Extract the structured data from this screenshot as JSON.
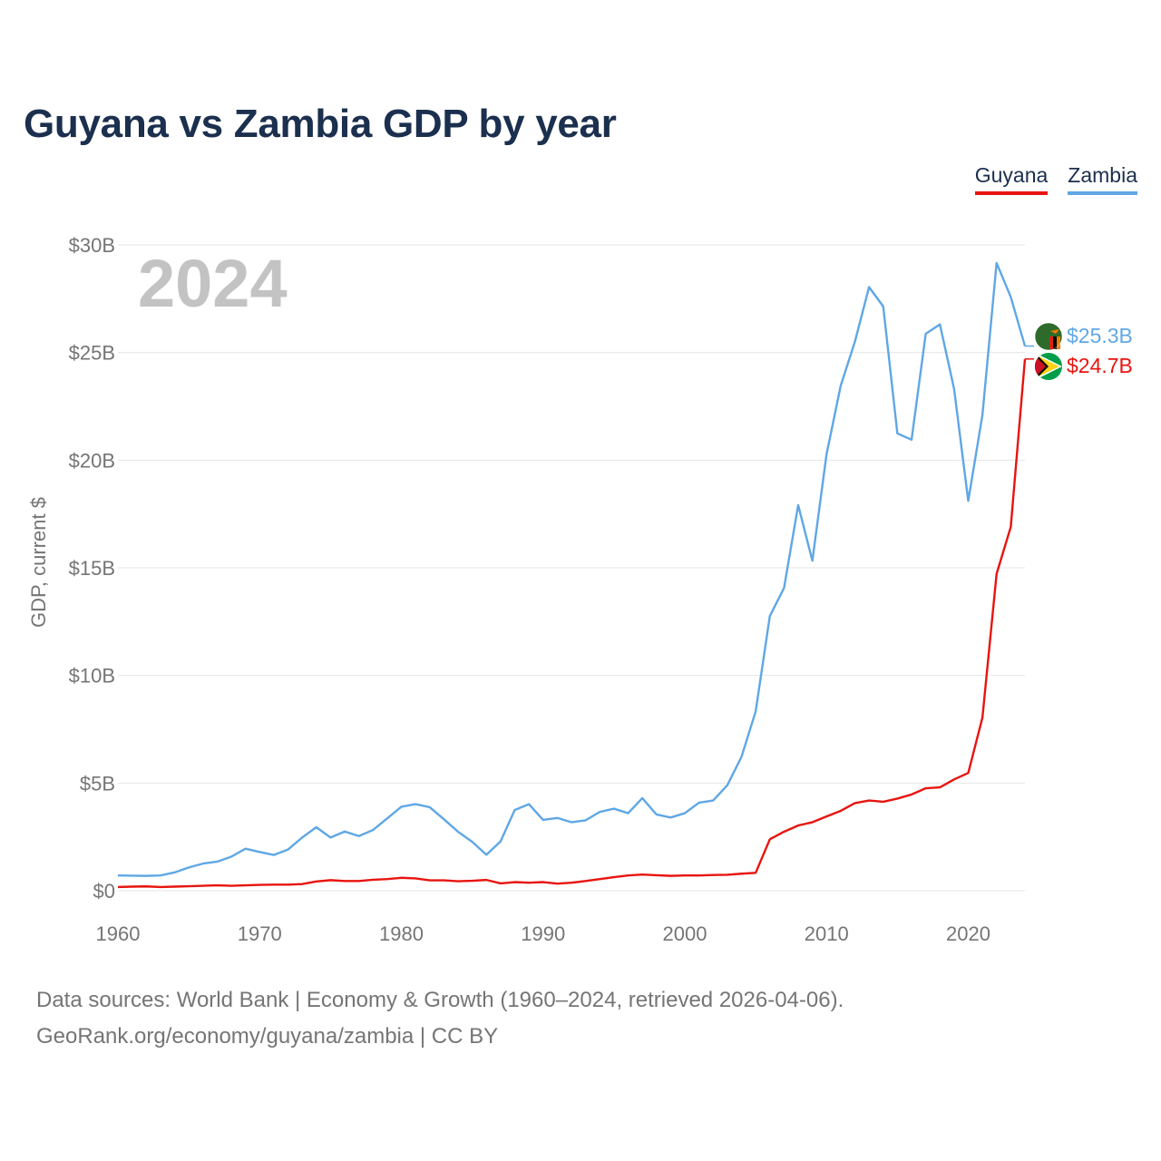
{
  "header": {
    "title": "Guyana vs Zambia GDP by year"
  },
  "legend": [
    {
      "label": "Guyana",
      "color": "#e8140f"
    },
    {
      "label": "Zambia",
      "color": "#5fa7e5"
    }
  ],
  "year_watermark": "2024",
  "end_labels": {
    "zambia": "$25.3B",
    "guyana": "$24.7B"
  },
  "footer": {
    "source_line": "Data sources: World Bank | Economy & Growth (1960–2024, retrieved 2026-04-06).",
    "credit_line": "GeoRank.org/economy/guyana/zambia | CC BY"
  },
  "chart_data": {
    "type": "line",
    "title": "Guyana vs Zambia GDP by year",
    "xlabel": "",
    "ylabel": "GDP, current $",
    "xlim": [
      1960,
      2024
    ],
    "ylim": [
      0,
      30
    ],
    "x_ticks": [
      1960,
      1970,
      1980,
      1990,
      2000,
      2010,
      2020
    ],
    "x_tick_labels": [
      "1960",
      "1970",
      "1980",
      "1990",
      "2000",
      "2010",
      "2020"
    ],
    "y_ticks": [
      0,
      5,
      10,
      15,
      20,
      25,
      30
    ],
    "y_tick_labels": [
      "$0",
      "$5B",
      "$10B",
      "$15B",
      "$20B",
      "$25B",
      "$30B"
    ],
    "grid": true,
    "unit": "billion US$",
    "x": [
      1960,
      1961,
      1962,
      1963,
      1964,
      1965,
      1966,
      1967,
      1968,
      1969,
      1970,
      1971,
      1972,
      1973,
      1974,
      1975,
      1976,
      1977,
      1978,
      1979,
      1980,
      1981,
      1982,
      1983,
      1984,
      1985,
      1986,
      1987,
      1988,
      1989,
      1990,
      1991,
      1992,
      1993,
      1994,
      1995,
      1996,
      1997,
      1998,
      1999,
      2000,
      2001,
      2002,
      2003,
      2004,
      2005,
      2006,
      2007,
      2008,
      2009,
      2010,
      2011,
      2012,
      2013,
      2014,
      2015,
      2016,
      2017,
      2018,
      2019,
      2020,
      2021,
      2022,
      2023,
      2024
    ],
    "series": [
      {
        "name": "Zambia",
        "color": "#5fa7e5",
        "values": [
          0.71,
          0.7,
          0.69,
          0.71,
          0.85,
          1.08,
          1.26,
          1.35,
          1.58,
          1.95,
          1.8,
          1.66,
          1.91,
          2.47,
          2.95,
          2.47,
          2.75,
          2.54,
          2.82,
          3.36,
          3.9,
          4.02,
          3.88,
          3.32,
          2.74,
          2.27,
          1.67,
          2.29,
          3.75,
          4.02,
          3.29,
          3.38,
          3.18,
          3.27,
          3.66,
          3.81,
          3.6,
          4.3,
          3.54,
          3.4,
          3.6,
          4.09,
          4.19,
          4.9,
          6.22,
          8.33,
          12.76,
          14.06,
          17.91,
          15.33,
          20.27,
          23.46,
          25.5,
          28.04,
          27.14,
          21.24,
          20.95,
          25.87,
          26.31,
          23.31,
          18.11,
          22.1,
          29.16,
          27.58,
          25.3
        ]
      },
      {
        "name": "Guyana",
        "color": "#e8140f",
        "values": [
          0.17,
          0.19,
          0.2,
          0.17,
          0.19,
          0.21,
          0.23,
          0.25,
          0.23,
          0.25,
          0.27,
          0.28,
          0.28,
          0.31,
          0.43,
          0.49,
          0.45,
          0.45,
          0.51,
          0.54,
          0.6,
          0.57,
          0.48,
          0.48,
          0.44,
          0.46,
          0.5,
          0.34,
          0.4,
          0.37,
          0.4,
          0.33,
          0.37,
          0.45,
          0.54,
          0.63,
          0.71,
          0.75,
          0.72,
          0.69,
          0.71,
          0.71,
          0.73,
          0.74,
          0.79,
          0.83,
          2.39,
          2.74,
          3.03,
          3.18,
          3.45,
          3.71,
          4.07,
          4.19,
          4.13,
          4.28,
          4.47,
          4.76,
          4.8,
          5.17,
          5.47,
          8.04,
          14.72,
          16.9,
          24.7
        ]
      }
    ]
  }
}
